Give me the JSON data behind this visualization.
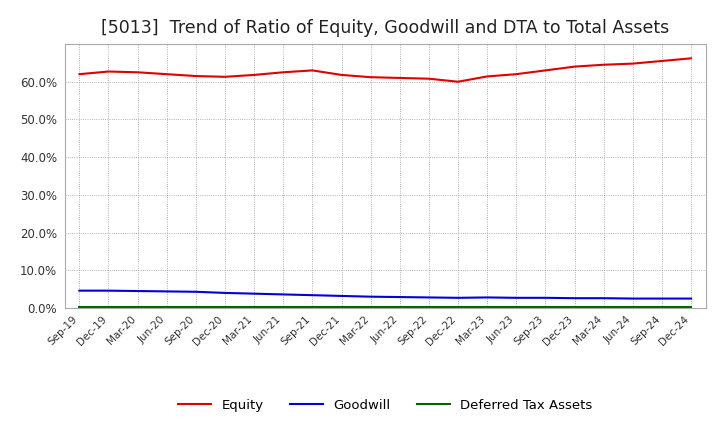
{
  "title": "[5013]  Trend of Ratio of Equity, Goodwill and DTA to Total Assets",
  "x_labels": [
    "Sep-19",
    "Dec-19",
    "Mar-20",
    "Jun-20",
    "Sep-20",
    "Dec-20",
    "Mar-21",
    "Jun-21",
    "Sep-21",
    "Dec-21",
    "Mar-22",
    "Jun-22",
    "Sep-22",
    "Dec-22",
    "Mar-23",
    "Jun-23",
    "Sep-23",
    "Dec-23",
    "Mar-24",
    "Jun-24",
    "Sep-24",
    "Dec-24"
  ],
  "equity": [
    0.62,
    0.627,
    0.625,
    0.62,
    0.615,
    0.613,
    0.618,
    0.625,
    0.63,
    0.618,
    0.612,
    0.61,
    0.608,
    0.6,
    0.614,
    0.62,
    0.63,
    0.64,
    0.645,
    0.648,
    0.655,
    0.662
  ],
  "goodwill": [
    0.046,
    0.046,
    0.045,
    0.044,
    0.043,
    0.04,
    0.038,
    0.036,
    0.034,
    0.032,
    0.03,
    0.029,
    0.028,
    0.027,
    0.028,
    0.027,
    0.027,
    0.026,
    0.026,
    0.025,
    0.025,
    0.025
  ],
  "dta": [
    0.003,
    0.003,
    0.003,
    0.003,
    0.003,
    0.003,
    0.003,
    0.003,
    0.003,
    0.003,
    0.003,
    0.003,
    0.003,
    0.003,
    0.003,
    0.003,
    0.003,
    0.003,
    0.003,
    0.003,
    0.003,
    0.003
  ],
  "equity_color": "#e00000",
  "goodwill_color": "#0000dd",
  "dta_color": "#006600",
  "background_color": "#ffffff",
  "plot_bg_color": "#ffffff",
  "grid_color": "#999999",
  "ylim": [
    0.0,
    0.7
  ],
  "yticks": [
    0.0,
    0.1,
    0.2,
    0.3,
    0.4,
    0.5,
    0.6
  ],
  "title_fontsize": 12.5,
  "legend_labels": [
    "Equity",
    "Goodwill",
    "Deferred Tax Assets"
  ]
}
